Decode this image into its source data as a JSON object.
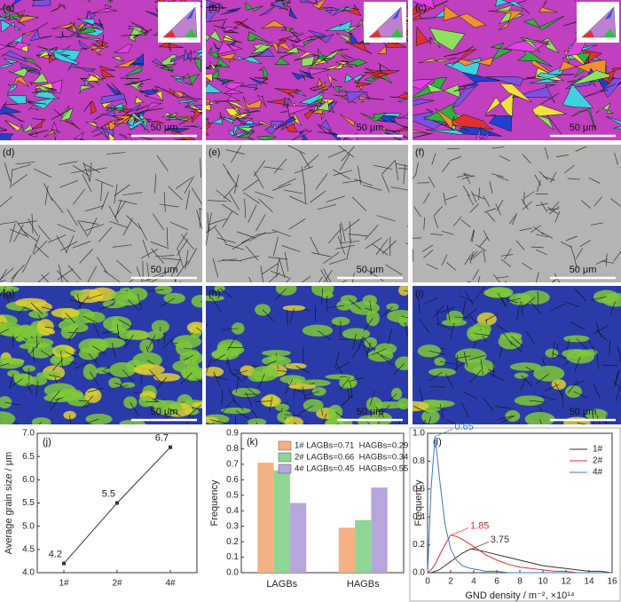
{
  "panels": [
    {
      "label": "(a)",
      "scale_bar": "50 μm"
    },
    {
      "label": "(b)",
      "scale_bar": "50 μm"
    },
    {
      "label": "(c)",
      "scale_bar": "50 μm"
    },
    {
      "label": "(d)",
      "scale_bar": "50 μm"
    },
    {
      "label": "(e)",
      "scale_bar": "50 μm"
    },
    {
      "label": "(f)",
      "scale_bar": "50 μm"
    },
    {
      "label": "(g)",
      "scale_bar": "50 μm"
    },
    {
      "label": "(h)",
      "scale_bar": "50 μm"
    },
    {
      "label": "(i)",
      "scale_bar": "50 μm"
    }
  ],
  "chart_data": [
    {
      "type": "line",
      "panel_label": "(j)",
      "ylabel": "Average grain size / μm",
      "categories": [
        "1#",
        "2#",
        "4#"
      ],
      "values": [
        4.2,
        5.5,
        6.7
      ],
      "color": "#333333",
      "ylim": [
        4.0,
        7.0
      ],
      "yticks": [
        {
          "value": 4.0,
          "label": "4.0"
        },
        4.5,
        {
          "value": 5.0,
          "label": "5.0"
        },
        5.5,
        {
          "value": 6.0,
          "label": "6.0"
        },
        6.5,
        {
          "value": 7.0,
          "label": "7.0"
        }
      ]
    },
    {
      "type": "bar",
      "panel_label": "(k)",
      "ylabel": "Frequency",
      "categories": [
        "LAGBs",
        "HAGBs"
      ],
      "series": [
        {
          "name": "1# LAGBs=0.71  HAGBs=0.29",
          "color": "#f4b183",
          "values": [
            0.71,
            0.29
          ]
        },
        {
          "name": "2# LAGBs=0.66  HAGBs=0.34",
          "color": "#8fd694",
          "values": [
            0.66,
            0.34
          ]
        },
        {
          "name": "4# LAGBs=0.45  HAGBs=0.55",
          "color": "#b7a6dc",
          "values": [
            0.45,
            0.55
          ]
        }
      ],
      "ylim": [
        0,
        0.9
      ],
      "yticks": [
        {
          "value": 0,
          "label": "0.0"
        },
        0.1,
        0.2,
        0.3,
        0.4,
        0.5,
        0.6,
        0.7,
        0.8,
        0.9
      ]
    },
    {
      "type": "line",
      "panel_label": "(l)",
      "xlabel": "GND density / m⁻², ×10¹⁴",
      "ylabel": "Frequency",
      "x": [
        0,
        0.3,
        0.65,
        1,
        1.5,
        2,
        2.5,
        3,
        3.75,
        4.5,
        5,
        6,
        7,
        8,
        9,
        10,
        11,
        12,
        13,
        14,
        15,
        16
      ],
      "series": [
        {
          "name": "1#",
          "color": "#333333",
          "values": [
            0,
            0,
            0.01,
            0.02,
            0.05,
            0.08,
            0.11,
            0.14,
            0.17,
            0.16,
            0.15,
            0.13,
            0.11,
            0.09,
            0.07,
            0.05,
            0.04,
            0.03,
            0.02,
            0.01,
            0.01,
            0
          ]
        },
        {
          "name": "2#",
          "color": "#e03030",
          "values": [
            0,
            0.02,
            0.06,
            0.12,
            0.2,
            0.27,
            0.26,
            0.24,
            0.2,
            0.16,
            0.13,
            0.09,
            0.06,
            0.04,
            0.03,
            0.02,
            0.01,
            0.01,
            0,
            0,
            0,
            0
          ]
        },
        {
          "name": "4#",
          "color": "#3a78c8",
          "values": [
            0,
            0.6,
            0.98,
            0.7,
            0.35,
            0.17,
            0.09,
            0.05,
            0.03,
            0.02,
            0.01,
            0.01,
            0,
            0,
            0,
            0,
            0,
            0,
            0,
            0,
            0,
            0
          ]
        }
      ],
      "annotations": [
        "3.75",
        "1.85",
        "0.65"
      ],
      "xlim": [
        0,
        16
      ],
      "xticks": [
        0,
        2,
        4,
        6,
        8,
        10,
        12,
        14,
        16
      ],
      "ylim": [
        0,
        1.0
      ],
      "yticks": [
        {
          "value": 0,
          "label": "0.0"
        },
        0.2,
        0.4,
        0.6,
        0.8,
        {
          "value": 1.0,
          "label": "1.0"
        }
      ]
    }
  ]
}
